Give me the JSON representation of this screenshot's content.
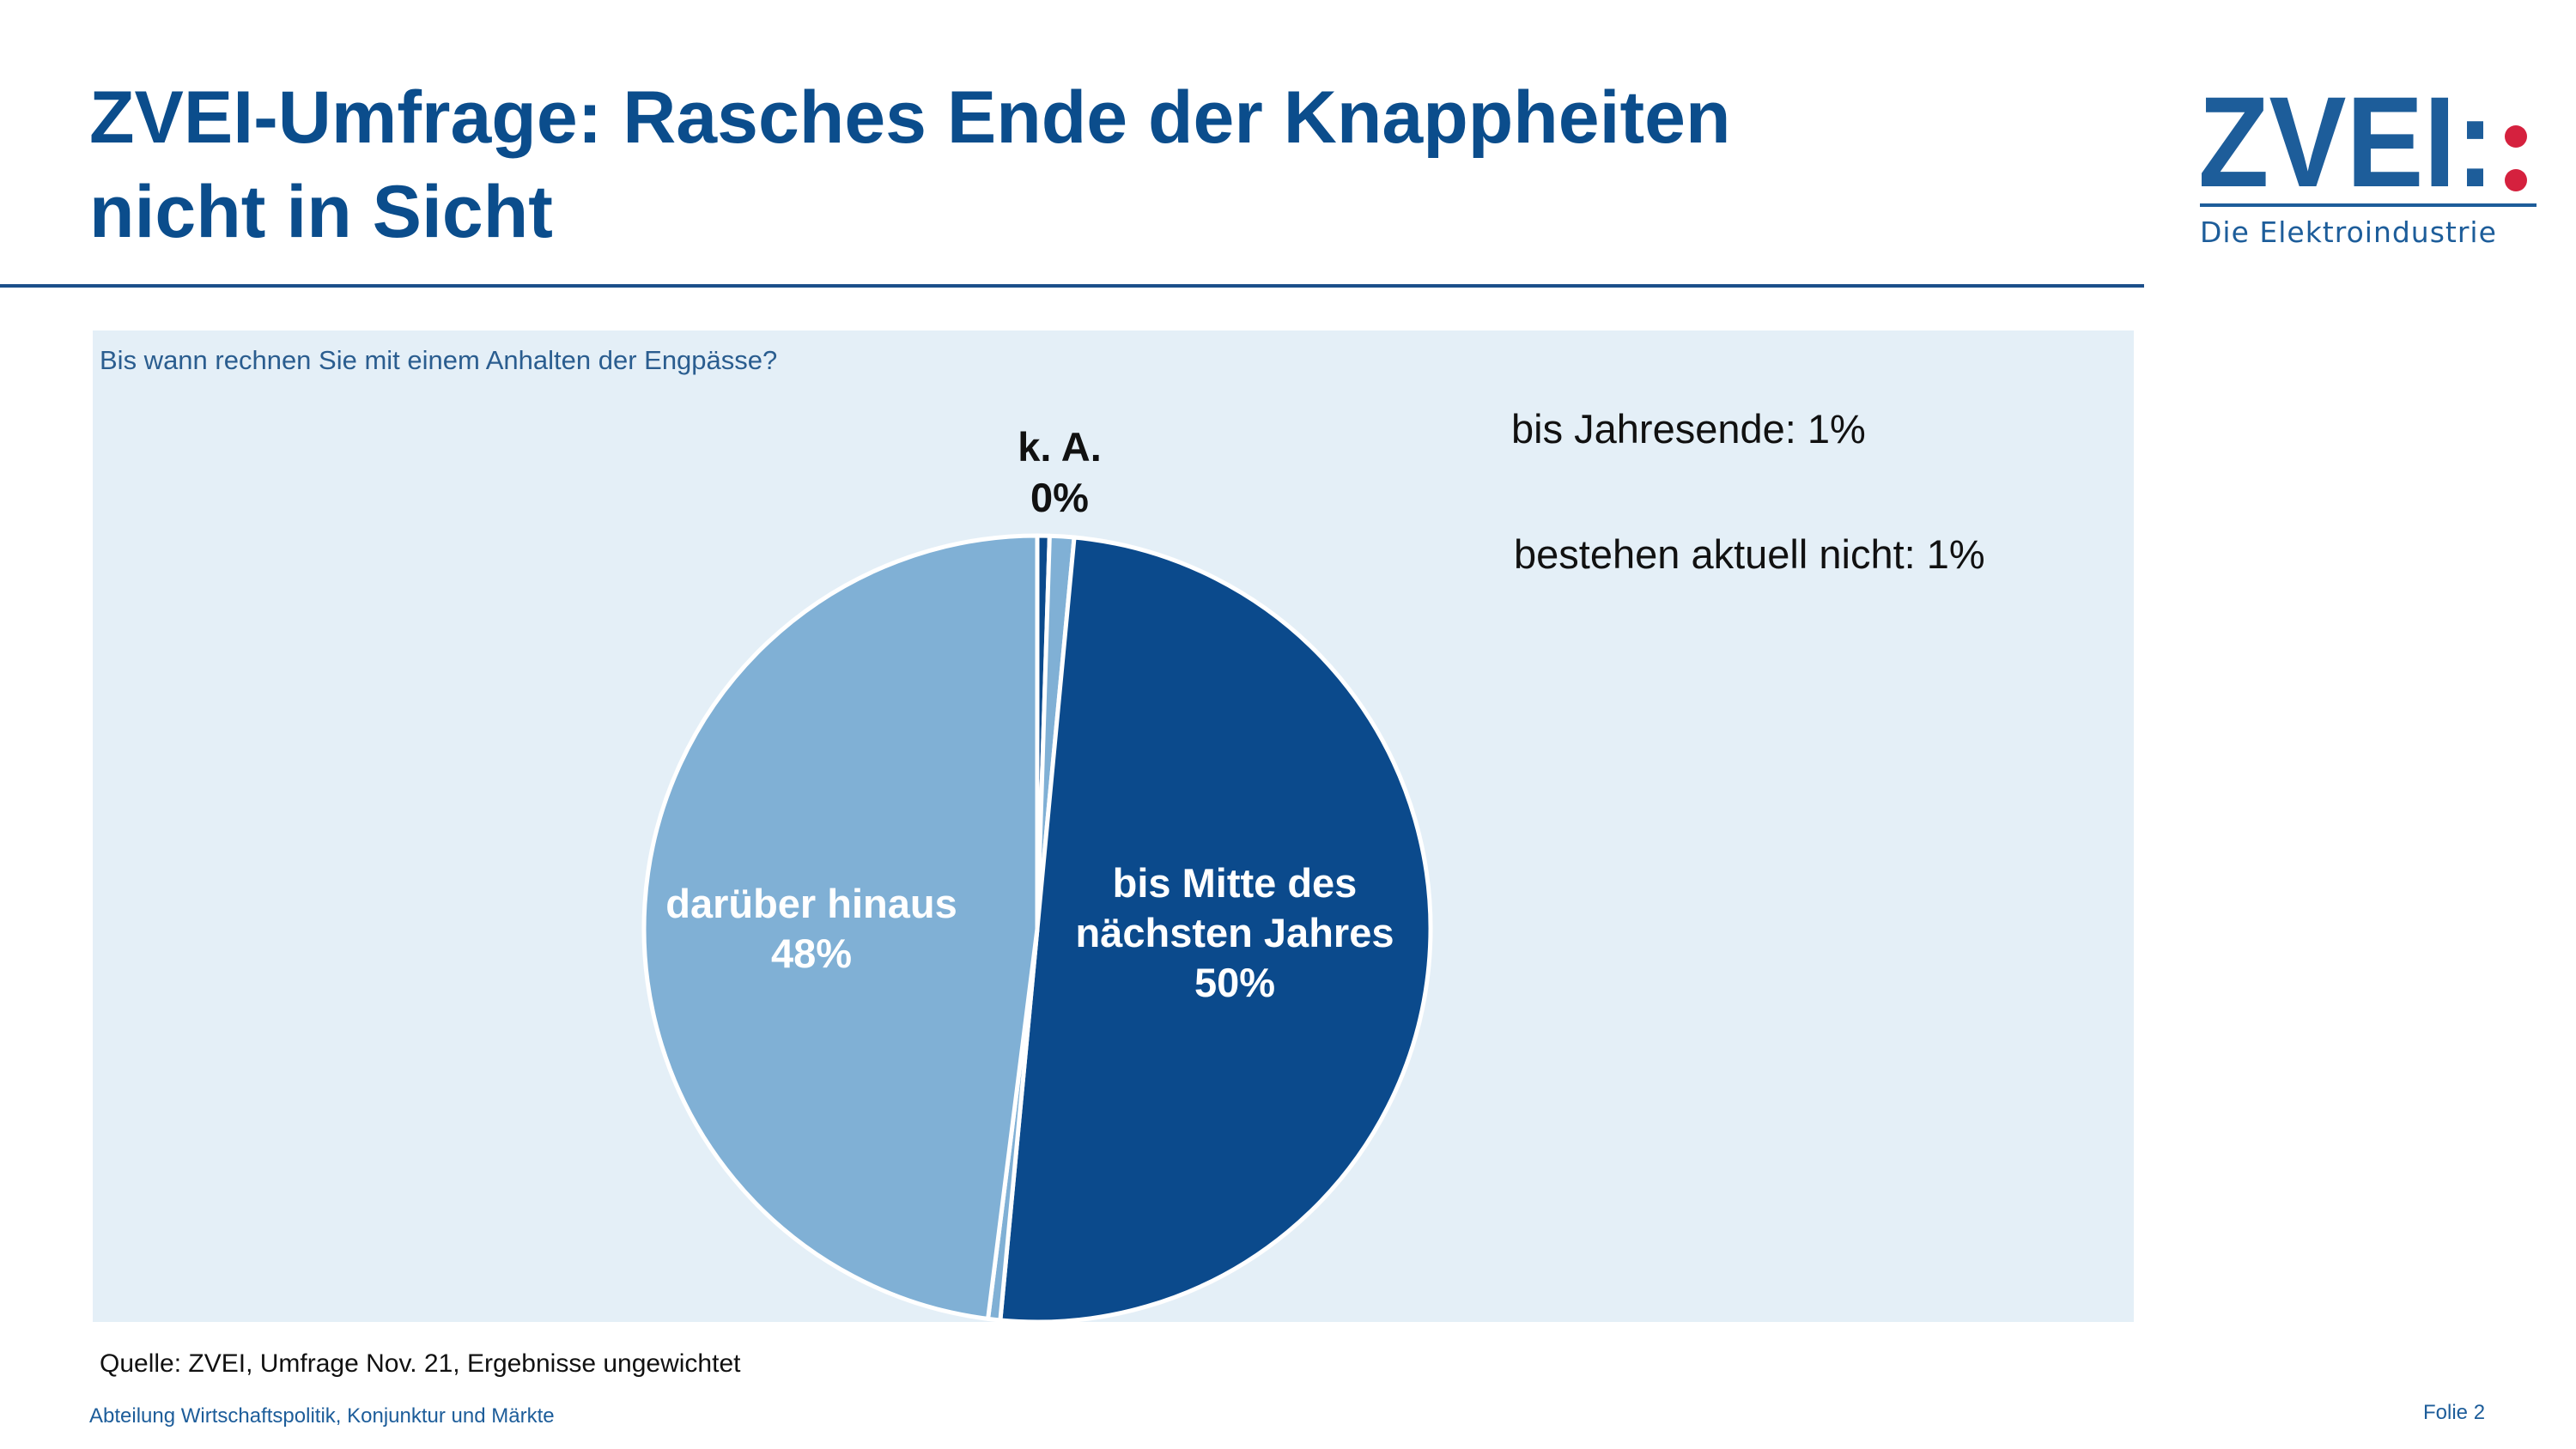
{
  "slide": {
    "title_line1": "ZVEI-Umfrage: Rasches Ende der Knappheiten",
    "title_line2": "nicht in Sicht",
    "footer_department": "Abteilung Wirtschaftspolitik, Konjunktur und Märkte",
    "footer_slide": "Folie 2"
  },
  "logo": {
    "wordmark": "ZVEI:",
    "tagline": "Die Elektroindustrie"
  },
  "colors": {
    "title": "#0b4d8c",
    "panel": "#e4eff7",
    "dark_blue": "#0b4a8c",
    "light_blue": "#80b0d5",
    "logo_red": "#d5213e"
  },
  "chart_data": {
    "type": "pie",
    "title": "Bis wann rechnen Sie mit einem Anhalten der Engpässe?",
    "source": "Quelle: ZVEI, Umfrage Nov. 21, Ergebnisse ungewichtet",
    "slices": [
      {
        "key": "ka",
        "label": "k. A.",
        "value_label": "0%",
        "value": 0.5,
        "color": "#0b4a8c"
      },
      {
        "key": "jahresende",
        "label": "bis Jahresende: 1%",
        "value": 1,
        "color": "#80b0d5"
      },
      {
        "key": "mitte",
        "label": "bis Mitte des nächsten Jahres",
        "label_lines": [
          "bis Mitte des",
          "nächsten Jahres"
        ],
        "value_label": "50%",
        "value": 50,
        "color": "#0b4a8c"
      },
      {
        "key": "nicht",
        "label": "bestehen aktuell nicht: 1%",
        "value": 0.5,
        "color": "#80b0d5"
      },
      {
        "key": "hinaus",
        "label": "darüber hinaus",
        "value_label": "48%",
        "value": 48,
        "color": "#80b0d5"
      }
    ],
    "start_angle_deg": 0,
    "direction": "clockwise"
  }
}
